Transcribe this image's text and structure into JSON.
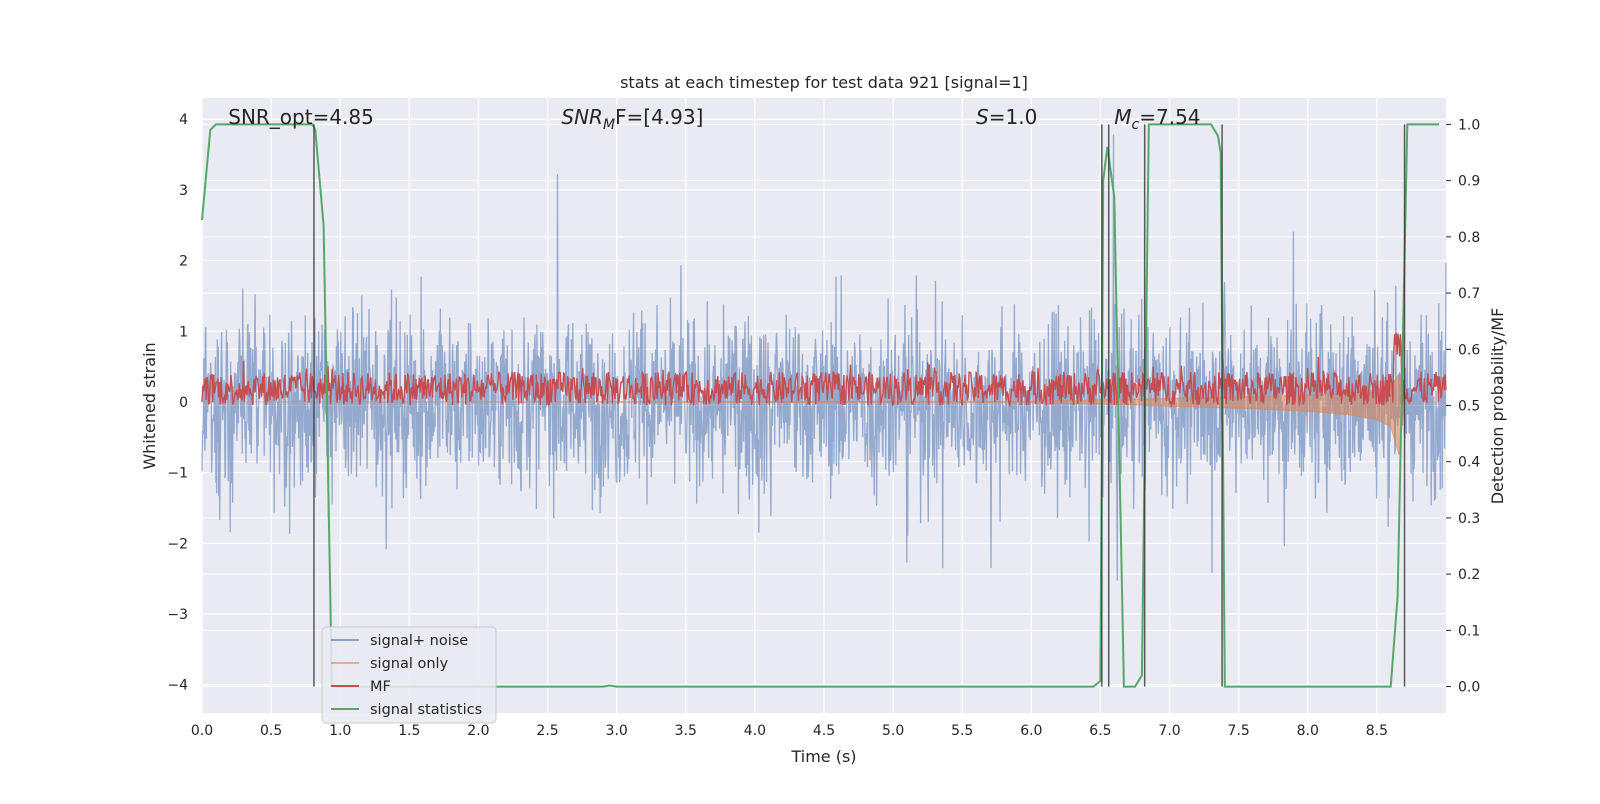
{
  "chart_data": {
    "type": "line",
    "title": "stats at each timestep for test data 921 [signal=1]",
    "xlabel": "Time (s)",
    "ylabel": "Whitened strain",
    "y2label": "Detection probability/MF",
    "xlim": [
      0,
      9.0
    ],
    "ylim": [
      -4.4,
      4.3
    ],
    "y2lim": [
      -0.047,
      1.047
    ],
    "xticks": [
      "0.0",
      "0.5",
      "1.0",
      "1.5",
      "2.0",
      "2.5",
      "3.0",
      "3.5",
      "4.0",
      "4.5",
      "5.0",
      "5.5",
      "6.0",
      "6.5",
      "7.0",
      "7.5",
      "8.0",
      "8.5"
    ],
    "yticks": [
      "−4",
      "−3",
      "−2",
      "−1",
      "0",
      "1",
      "2",
      "3",
      "4"
    ],
    "y2ticks": [
      "0.0",
      "0.1",
      "0.2",
      "0.3",
      "0.4",
      "0.5",
      "0.6",
      "0.7",
      "0.8",
      "0.9",
      "1.0"
    ],
    "grid": true,
    "legend_position": "lower-left",
    "annotations": [
      {
        "text": "SNR_opt=4.85",
        "x": 0.19
      },
      {
        "text_base": "SNR",
        "text_sub": "M",
        "text_rest": "F=[4.93]",
        "x": 2.6
      },
      {
        "text_base": "S",
        "text_sub": "",
        "text_rest": "=1.0",
        "x": 5.6
      },
      {
        "text_base": "M",
        "text_sub": "c",
        "text_rest": "=7.54",
        "x": 6.6
      }
    ],
    "vertical_markers_x": [
      0.81,
      6.51,
      6.56,
      6.82,
      7.38,
      8.7
    ],
    "series": [
      {
        "name": "signal+ noise",
        "color": "#4c72b0",
        "axis": "left",
        "description_points": [],
        "envelope_abs": 2.2
      },
      {
        "name": "signal only",
        "color": "#dd8452",
        "axis": "left",
        "x": [
          0,
          6.0,
          6.5,
          7.0,
          7.5,
          8.0,
          8.3,
          8.5,
          8.6,
          8.66,
          8.7,
          9.0
        ],
        "upper": [
          0,
          0.01,
          0.03,
          0.05,
          0.07,
          0.1,
          0.13,
          0.17,
          0.22,
          0.4,
          0,
          0
        ],
        "lower": [
          0,
          -0.01,
          -0.03,
          -0.06,
          -0.09,
          -0.13,
          -0.18,
          -0.25,
          -0.35,
          -0.75,
          0,
          0
        ]
      },
      {
        "name": "MF",
        "color": "#c44e52",
        "axis": "right",
        "base": 0.53,
        "spread": 0.03
      },
      {
        "name": "signal statistics",
        "color": "#55a868",
        "axis": "right",
        "x": [
          0.0,
          0.06,
          0.1,
          0.3,
          0.8,
          0.82,
          0.88,
          0.94,
          0.97,
          1.0,
          2.9,
          2.95,
          3.0,
          6.45,
          6.5,
          6.52,
          6.55,
          6.6,
          6.67,
          6.7,
          6.75,
          6.8,
          6.85,
          6.9,
          7.0,
          7.3,
          7.35,
          7.37,
          7.4,
          7.45,
          8.6,
          8.65,
          8.72,
          8.75,
          8.8,
          8.95
        ],
        "y": [
          0.83,
          0.99,
          1.0,
          1.0,
          1.0,
          0.99,
          0.82,
          0.0,
          0.0,
          0.0,
          0.0,
          0.002,
          0.0,
          0.0,
          0.01,
          0.9,
          0.96,
          0.87,
          0.0,
          0.0,
          0.0,
          0.02,
          1.0,
          1.0,
          1.0,
          1.0,
          0.98,
          0.95,
          0.0,
          0.0,
          0.0,
          0.16,
          1.0,
          1.0,
          1.0,
          1.0
        ]
      }
    ]
  }
}
